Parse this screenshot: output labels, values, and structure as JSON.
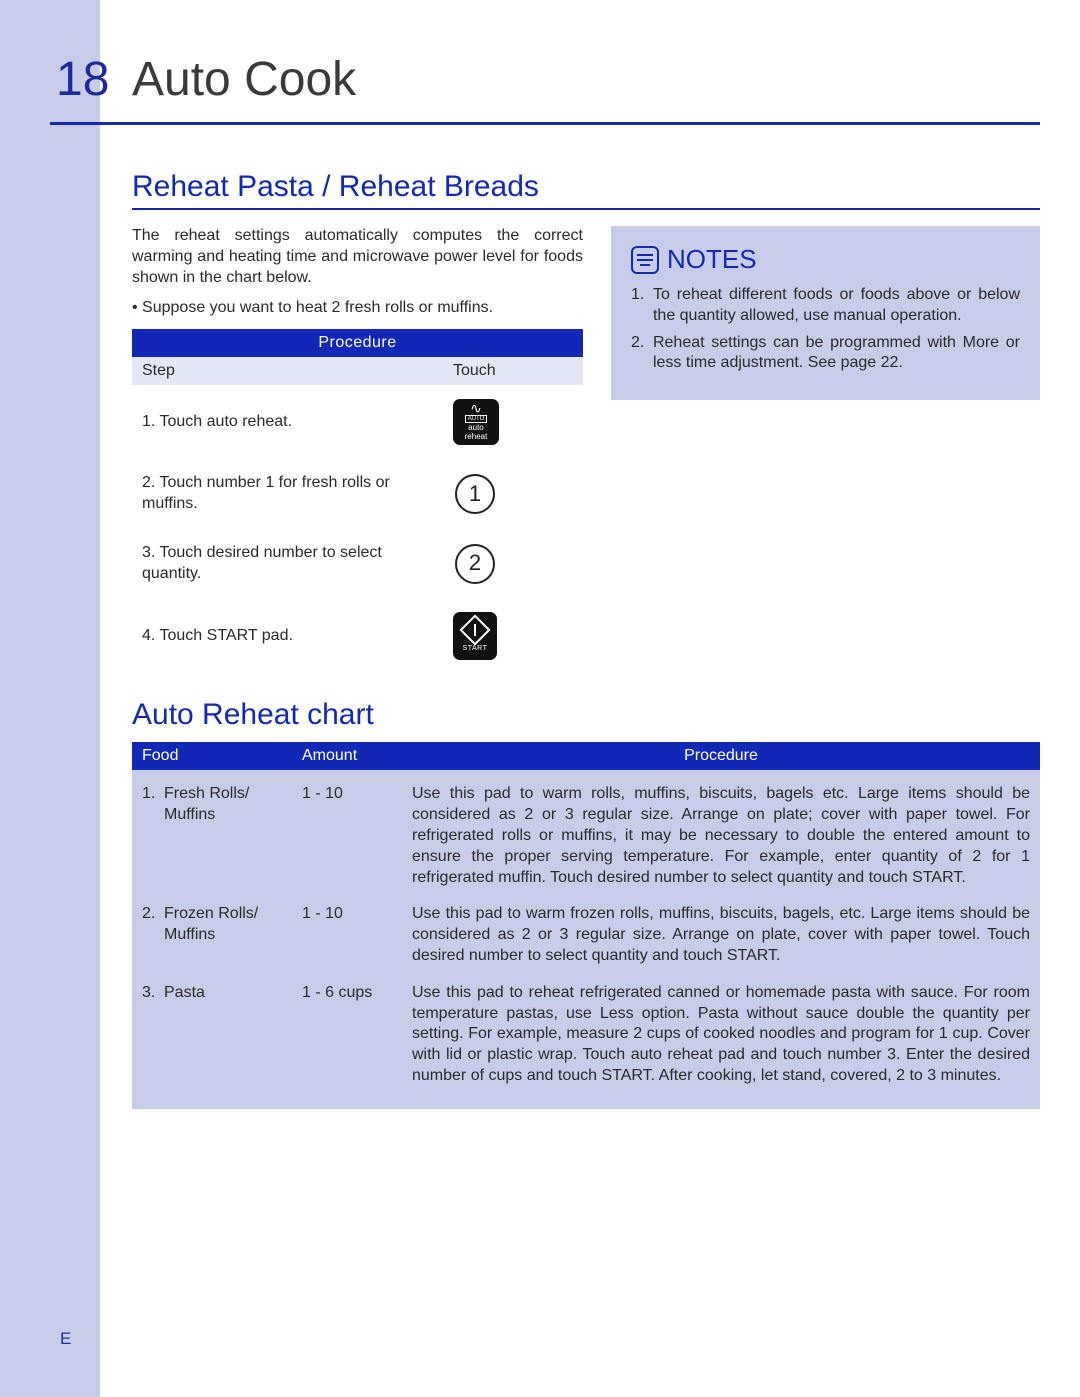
{
  "colors": {
    "brand_blue": "#1228b6",
    "sidebar_bg": "#c7cde9",
    "notes_bg": "#c7cde9",
    "chart_bg": "#c7cde9",
    "text": "#2a2a2a",
    "page_bg": "#ffffff"
  },
  "page": {
    "number": "18",
    "title": "Auto Cook",
    "footer_mark": "E"
  },
  "section1": {
    "title": "Reheat Pasta / Reheat Breads",
    "intro": "The reheat settings automatically computes the correct warming and heating time and microwave power level for foods shown in the chart below.",
    "bullet": "• Suppose you want to heat 2 fresh rolls or muffins.",
    "procedure_header": "Procedure",
    "sub_step": "Step",
    "sub_touch": "Touch",
    "steps": [
      {
        "text": "1. Touch auto reheat.",
        "icon": "auto-reheat"
      },
      {
        "text": "2. Touch number 1 for fresh rolls or muffins.",
        "icon": "1"
      },
      {
        "text": "3. Touch desired number to select quantity.",
        "icon": "2"
      },
      {
        "text": "4. Touch START pad.",
        "icon": "start"
      }
    ]
  },
  "notes": {
    "title": "NOTES",
    "items": [
      "To reheat different foods or foods above or below the quantity allowed, use manual operation.",
      "Reheat settings can be programmed with More or less time adjustment. See page 22."
    ]
  },
  "chart": {
    "title": "Auto Reheat chart",
    "header": {
      "food": "Food",
      "amount": "Amount",
      "procedure": "Procedure"
    },
    "rows": [
      {
        "num": "1.",
        "food": "Fresh Rolls/ Muffins",
        "amount": "1 - 10",
        "procedure": "Use this pad to warm rolls, muffins, biscuits, bagels etc. Large items should be considered as 2 or 3 regular size. Arrange on plate; cover with paper towel. For refrigerated rolls or muffins, it may be necessary to double the entered amount to ensure the proper serving temperature. For example, enter quantity of 2 for 1 refrigerated muffin. Touch desired number to select quantity and touch  START."
      },
      {
        "num": "2.",
        "food": "Frozen Rolls/ Muffins",
        "amount": "1 - 10",
        "procedure": "Use this pad to warm frozen rolls, muffins, biscuits, bagels, etc. Large items should be considered as 2 or 3 regular size. Arrange on plate, cover with paper towel. Touch desired number to select quantity  and touch START."
      },
      {
        "num": "3.",
        "food": "Pasta",
        "amount": "1 - 6 cups",
        "procedure": "Use this pad to reheat refrigerated canned or homemade pasta with sauce. For room temperature pastas, use Less option. Pasta without sauce double the quantity per setting. For example, measure 2 cups of cooked noodles and program for 1 cup. Cover with lid or plastic wrap. Touch auto reheat pad and touch number 3. Enter the desired number of cups and touch  START. After cooking, let stand, covered, 2 to 3 minutes."
      }
    ]
  }
}
